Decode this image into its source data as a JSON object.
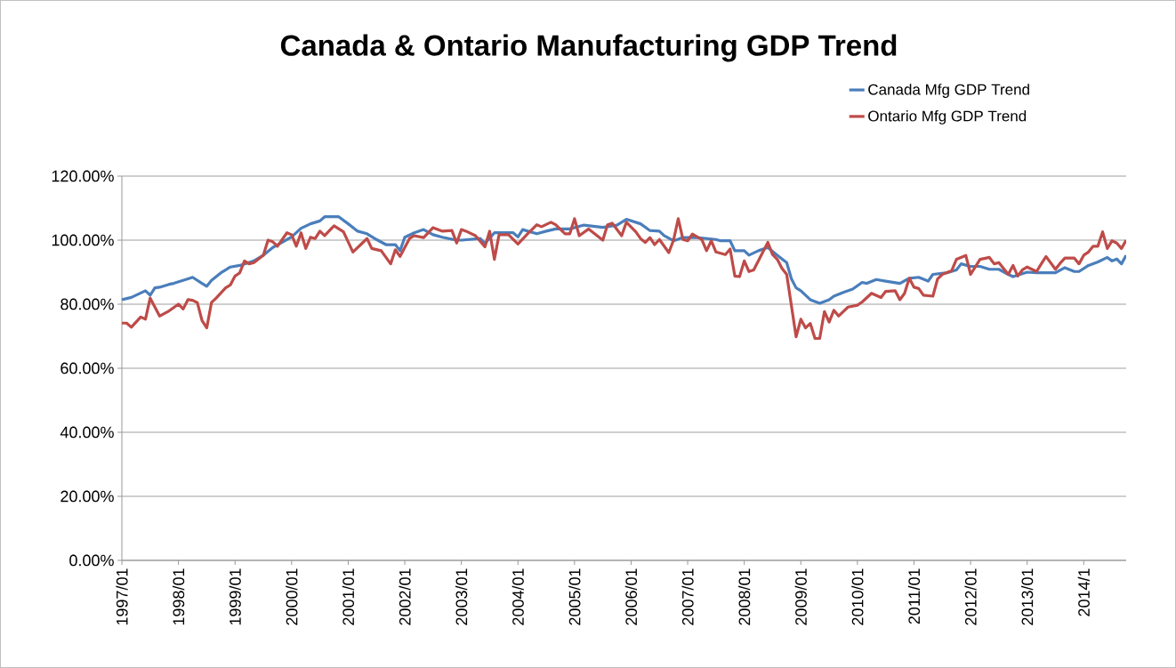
{
  "chart_data": {
    "type": "line",
    "title": "Canada & Ontario Manufacturing GDP Trend",
    "grid": "y",
    "legend": "top right",
    "xlim": [
      "1997-01",
      "2014-10"
    ],
    "xticks": [
      {
        "value": "1997-01",
        "label": "1997/01"
      },
      {
        "value": "1998-01",
        "label": "1998/01"
      },
      {
        "value": "1999-01",
        "label": "1999/01"
      },
      {
        "value": "2000-01",
        "label": "2000/01"
      },
      {
        "value": "2001-01",
        "label": "2001/01"
      },
      {
        "value": "2002-01",
        "label": "2002/01"
      },
      {
        "value": "2003-01",
        "label": "2003/01"
      },
      {
        "value": "2004-01",
        "label": "2004/01"
      },
      {
        "value": "2005-01",
        "label": "2005/01"
      },
      {
        "value": "2006-01",
        "label": "2006/01"
      },
      {
        "value": "2007-01",
        "label": "2007/01"
      },
      {
        "value": "2008-01",
        "label": "2008/01"
      },
      {
        "value": "2009-01",
        "label": "2009/01"
      },
      {
        "value": "2010-01",
        "label": "2010/01"
      },
      {
        "value": "2011-01",
        "label": "2011/01"
      },
      {
        "value": "2012-01",
        "label": "2012/01"
      },
      {
        "value": "2013-01",
        "label": "2013/01"
      },
      {
        "value": "2014-01",
        "label": "2014/1"
      }
    ],
    "ylim": [
      0,
      120
    ],
    "yticks": [
      {
        "value": 0,
        "label": "0.00%"
      },
      {
        "value": 20,
        "label": "20.00%"
      },
      {
        "value": 40,
        "label": "40.00%"
      },
      {
        "value": 60,
        "label": "60.00%"
      },
      {
        "value": 80,
        "label": "80.00%"
      },
      {
        "value": 100,
        "label": "100.00%"
      },
      {
        "value": 120,
        "label": "120.00%"
      }
    ],
    "series": [
      {
        "name": "Canada Mfg GDP Trend",
        "color": "#4a7ebb",
        "x": [
          "1997-01",
          "1997-03",
          "1997-06",
          "1997-07",
          "1997-08",
          "1997-09",
          "1997-11",
          "1997-12",
          "1998-03",
          "1998-04",
          "1998-06",
          "1998-07",
          "1998-08",
          "1998-10",
          "1998-12",
          "1999-02",
          "1999-05",
          "1999-07",
          "1999-09",
          "2000-01",
          "2000-03",
          "2000-05",
          "2000-07",
          "2000-08",
          "2000-11",
          "2001-01",
          "2001-03",
          "2001-05",
          "2001-07",
          "2001-09",
          "2001-11",
          "2001-12",
          "2002-01",
          "2002-03",
          "2002-05",
          "2002-07",
          "2002-09",
          "2002-12",
          "2003-01",
          "2003-05",
          "2003-06",
          "2003-08",
          "2003-12",
          "2004-01",
          "2004-02",
          "2004-05",
          "2004-07",
          "2004-09",
          "2004-12",
          "2005-03",
          "2005-07",
          "2005-10",
          "2005-12",
          "2006-03",
          "2006-05",
          "2006-07",
          "2006-08",
          "2006-10",
          "2006-12",
          "2007-03",
          "2007-07",
          "2007-08",
          "2007-10",
          "2007-11",
          "2008-01",
          "2008-02",
          "2008-04",
          "2008-06",
          "2008-08",
          "2008-10",
          "2008-11",
          "2008-12",
          "2009-01",
          "2009-03",
          "2009-05",
          "2009-07",
          "2009-08",
          "2009-10",
          "2009-12",
          "2010-02",
          "2010-03",
          "2010-05",
          "2010-07",
          "2010-10",
          "2010-12",
          "2011-02",
          "2011-04",
          "2011-05",
          "2011-08",
          "2011-10",
          "2011-11",
          "2012-01",
          "2012-03",
          "2012-05",
          "2012-07",
          "2012-09",
          "2012-10",
          "2013-01",
          "2013-03",
          "2013-07",
          "2013-09",
          "2013-11",
          "2013-12",
          "2014-02",
          "2014-04",
          "2014-06",
          "2014-07",
          "2014-08",
          "2014-09",
          "2014-10"
        ],
        "values": [
          81.4,
          82.1,
          84.2,
          82.8,
          85.1,
          85.3,
          86.2,
          86.5,
          87.9,
          88.4,
          86.5,
          85.6,
          87.4,
          89.8,
          91.6,
          92.1,
          93.5,
          95.3,
          97.7,
          101,
          103.7,
          105.1,
          106,
          107.3,
          107.3,
          105.1,
          102.8,
          102,
          100.2,
          98.6,
          98.6,
          96.7,
          100.9,
          102.3,
          103.3,
          101.7,
          100.9,
          100,
          100,
          100.5,
          99,
          102.3,
          102.3,
          101,
          103.3,
          102,
          102.8,
          103.5,
          103.5,
          104.7,
          104,
          104.7,
          106.5,
          105.1,
          103,
          102.8,
          101.4,
          99.8,
          100.8,
          100.8,
          100.2,
          99.8,
          99.8,
          96.7,
          96.7,
          95.3,
          96.7,
          97.7,
          95.3,
          93,
          87.9,
          85.1,
          84.2,
          81.4,
          80.3,
          81.4,
          82.5,
          83.7,
          84.7,
          86.8,
          86.5,
          87.7,
          87.2,
          86.5,
          88.1,
          88.4,
          87.2,
          89.3,
          89.8,
          90.7,
          92.6,
          91.8,
          91.8,
          90.9,
          90.9,
          89.3,
          88.6,
          90,
          89.8,
          89.8,
          91.4,
          90.2,
          90.2,
          92.1,
          93.2,
          94.6,
          93.5,
          94.1,
          92.6,
          95.3
        ]
      },
      {
        "name": "Ontario Mfg GDP Trend",
        "color": "#be4b48",
        "x": [
          "1997-01",
          "1997-02",
          "1997-03",
          "1997-05",
          "1997-06",
          "1997-07",
          "1997-09",
          "1997-11",
          "1998-01",
          "1998-02",
          "1998-03",
          "1998-04",
          "1998-05",
          "1998-06",
          "1998-07",
          "1998-08",
          "1998-09",
          "1998-11",
          "1998-12",
          "1999-01",
          "1999-02",
          "1999-03",
          "1999-04",
          "1999-05",
          "1999-07",
          "1999-08",
          "1999-09",
          "1999-10",
          "1999-12",
          "2000-01",
          "2000-02",
          "2000-03",
          "2000-04",
          "2000-05",
          "2000-06",
          "2000-07",
          "2000-08",
          "2000-10",
          "2000-12",
          "2001-02",
          "2001-04",
          "2001-05",
          "2001-06",
          "2001-08",
          "2001-10",
          "2001-11",
          "2001-12",
          "2002-02",
          "2002-03",
          "2002-05",
          "2002-07",
          "2002-09",
          "2002-11",
          "2002-12",
          "2003-01",
          "2003-02",
          "2003-04",
          "2003-06",
          "2003-07",
          "2003-08",
          "2003-09",
          "2003-11",
          "2004-01",
          "2004-03",
          "2004-05",
          "2004-06",
          "2004-08",
          "2004-09",
          "2004-11",
          "2004-12",
          "2005-01",
          "2005-02",
          "2005-04",
          "2005-07",
          "2005-08",
          "2005-09",
          "2005-11",
          "2005-12",
          "2006-02",
          "2006-03",
          "2006-04",
          "2006-05",
          "2006-06",
          "2006-07",
          "2006-09",
          "2006-10",
          "2006-11",
          "2006-12",
          "2007-01",
          "2007-02",
          "2007-04",
          "2007-05",
          "2007-06",
          "2007-07",
          "2007-09",
          "2007-10",
          "2007-11",
          "2007-12",
          "2008-01",
          "2008-02",
          "2008-03",
          "2008-06",
          "2008-07",
          "2008-08",
          "2008-09",
          "2008-10",
          "2008-12",
          "2009-01",
          "2009-02",
          "2009-03",
          "2009-04",
          "2009-05",
          "2009-06",
          "2009-07",
          "2009-08",
          "2009-09",
          "2009-11",
          "2010-01",
          "2010-02",
          "2010-04",
          "2010-06",
          "2010-07",
          "2010-09",
          "2010-10",
          "2010-11",
          "2010-12",
          "2011-01",
          "2011-02",
          "2011-03",
          "2011-05",
          "2011-06",
          "2011-07",
          "2011-09",
          "2011-10",
          "2011-12",
          "2012-01",
          "2012-03",
          "2012-05",
          "2012-06",
          "2012-07",
          "2012-09",
          "2012-10",
          "2012-11",
          "2012-12",
          "2013-01",
          "2013-03",
          "2013-04",
          "2013-05",
          "2013-07",
          "2013-08",
          "2013-09",
          "2013-11",
          "2013-12",
          "2014-01",
          "2014-02",
          "2014-03",
          "2014-04",
          "2014-05",
          "2014-06",
          "2014-07",
          "2014-08",
          "2014-09",
          "2014-10"
        ],
        "values": [
          74.1,
          74.1,
          72.8,
          76,
          75.3,
          81.9,
          76.3,
          77.9,
          80,
          78.5,
          81.4,
          81.2,
          80.5,
          74.9,
          72.6,
          80.5,
          81.9,
          85.1,
          86,
          88.8,
          89.8,
          93.5,
          92.6,
          93,
          95.3,
          100,
          99.5,
          98.1,
          102.3,
          101.7,
          98.1,
          102.3,
          97.4,
          100.9,
          100.5,
          102.8,
          101.4,
          104.5,
          102.6,
          96.3,
          99.1,
          100.5,
          97.4,
          96.7,
          92.6,
          97,
          94.9,
          100.5,
          101.4,
          100.8,
          103.9,
          102.8,
          103,
          99.1,
          103.3,
          102.8,
          101.4,
          97.9,
          102.8,
          94,
          101.7,
          101.7,
          98.8,
          101.9,
          104.8,
          104.2,
          105.6,
          104.8,
          102,
          102,
          106.7,
          101.4,
          103.5,
          100,
          104.8,
          105.3,
          101.4,
          105.6,
          102.6,
          100.5,
          99.3,
          100.8,
          98.6,
          100.2,
          96.1,
          100,
          106.7,
          100.2,
          99.8,
          101.9,
          100.2,
          96.7,
          99.8,
          96.3,
          95.5,
          97.2,
          88.8,
          88.6,
          93.5,
          90.2,
          90.7,
          99.3,
          95.5,
          94,
          91.2,
          89.3,
          69.8,
          75.3,
          72.6,
          74,
          69.3,
          69.3,
          77.7,
          74.4,
          78.1,
          76.3,
          79.1,
          79.7,
          80.7,
          83.4,
          82.1,
          84,
          84.2,
          81.4,
          83.4,
          88.1,
          85.3,
          84.9,
          82.8,
          82.5,
          87.9,
          89.3,
          90.5,
          94,
          95.2,
          89.3,
          94,
          94.6,
          92.6,
          93,
          89.3,
          92.1,
          88.8,
          90.7,
          91.6,
          90.2,
          92.6,
          94.9,
          90.9,
          92.8,
          94.4,
          94.4,
          92.6,
          95.3,
          96.3,
          98.1,
          98.1,
          102.6,
          97.4,
          99.8,
          99.1,
          97.4,
          100
        ]
      }
    ]
  }
}
